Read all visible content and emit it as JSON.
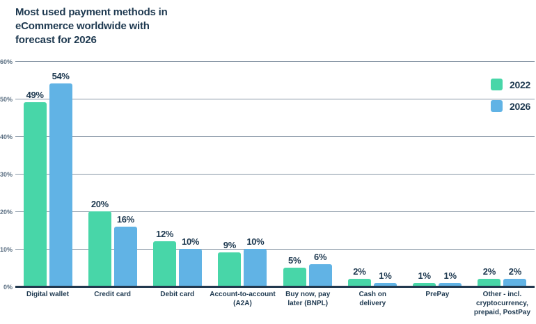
{
  "title": {
    "text": "Most used payment methods in eCommerce worldwide with forecast for 2026",
    "lines": [
      "Most used payment methods in",
      "eCommerce worldwide with",
      "forecast for 2026"
    ]
  },
  "colors": {
    "series_2022": "#48d6a8",
    "series_2026": "#61b3e5",
    "title_text": "#1e3950",
    "value_label_text": "#1e3950",
    "category_label_text": "#1e3950",
    "y_axis_label_text": "#5d7184",
    "gridline": "#8796a5",
    "axis_line": "#22384e",
    "background": "#ffffff"
  },
  "legend": {
    "position": "top-right",
    "items": [
      {
        "label": "2022",
        "color": "#48d6a8"
      },
      {
        "label": "2026",
        "color": "#61b3e5"
      }
    ]
  },
  "y_axis": {
    "unit": "%",
    "min": 0,
    "max": 60,
    "step": 10,
    "tick_labels": [
      "60%",
      "50%",
      "40%",
      "30%",
      "20%",
      "10%",
      "0%"
    ]
  },
  "x_axis": {
    "labels": [
      "Digital wallet",
      "Credit card",
      "Debit card",
      "Account-to-account\n(A2A)",
      "Buy now, pay\nlater (BNPL)",
      "Cash on\ndelivery",
      "PrePay",
      "Other - incl.\ncryptocurrency,\nprepaid, PostPay"
    ]
  },
  "chart_data": {
    "type": "bar",
    "title": "Most used payment methods in eCommerce worldwide with forecast for 2026",
    "categories": [
      "Digital wallet",
      "Credit card",
      "Debit card",
      "Account-to-account (A2A)",
      "Buy now, pay later (BNPL)",
      "Cash on delivery",
      "PrePay",
      "Other - incl. cryptocurrency, prepaid, PostPay"
    ],
    "series": [
      {
        "name": "2022",
        "color": "#48d6a8",
        "values": [
          49,
          20,
          12,
          9,
          5,
          2,
          1,
          2
        ]
      },
      {
        "name": "2026",
        "color": "#61b3e5",
        "values": [
          54,
          16,
          10,
          10,
          6,
          1,
          1,
          2
        ]
      }
    ],
    "value_label_format": "{value}%",
    "xlabel": "",
    "ylabel": "",
    "ylim": [
      0,
      60
    ],
    "grid": true,
    "legend_position": "top-right"
  }
}
